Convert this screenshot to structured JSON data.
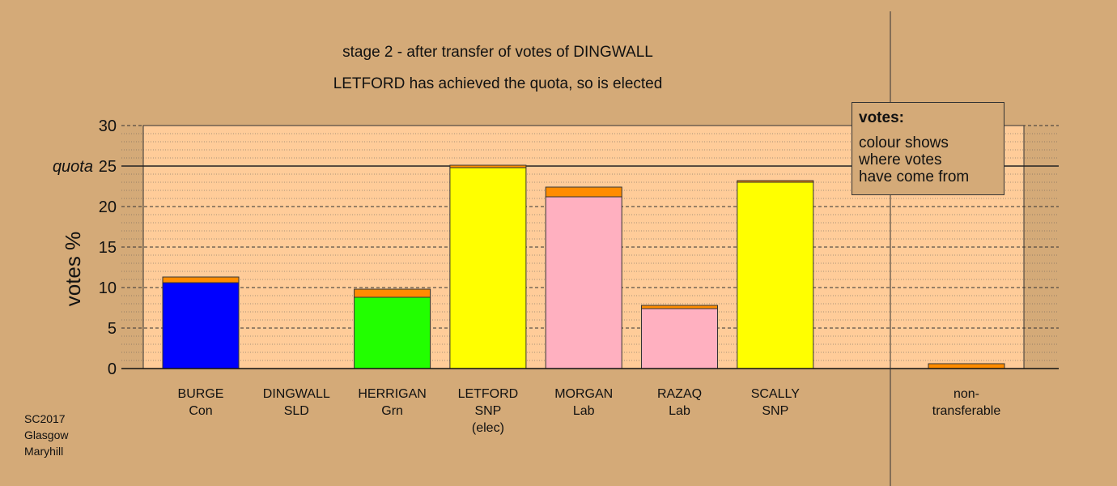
{
  "titles": {
    "line1": "stage 2 - after transfer of votes of DINGWALL",
    "line2": "LETFORD has achieved the quota, so is elected"
  },
  "legend": {
    "title": "votes:",
    "lines": [
      "colour shows",
      "where votes",
      "have come from"
    ]
  },
  "source": [
    "SC2017",
    "Glasgow",
    "Maryhill"
  ],
  "chart_data": {
    "type": "bar",
    "stacked": true,
    "title": "stage 2 - after transfer of votes of DINGWALL",
    "subtitle": "LETFORD has achieved the quota, so is elected",
    "ylabel": "votes %",
    "ylim": [
      0,
      30
    ],
    "yticks": [
      0,
      5,
      10,
      15,
      20,
      25,
      30
    ],
    "quota": {
      "label": "quota",
      "value": 25
    },
    "transfer_color": "#ff8c00",
    "categories": [
      {
        "name": "BURGE",
        "party": "Con",
        "note": "",
        "first": 10.6,
        "transfer": 0.7,
        "color": "#0000ff"
      },
      {
        "name": "DINGWALL",
        "party": "SLD",
        "note": "",
        "first": 0,
        "transfer": 0,
        "color": "#ff8c00"
      },
      {
        "name": "HERRIGAN",
        "party": "Grn",
        "note": "",
        "first": 8.8,
        "transfer": 1.0,
        "color": "#22ff00"
      },
      {
        "name": "LETFORD",
        "party": "SNP",
        "note": "(elec)",
        "first": 24.8,
        "transfer": 0.3,
        "color": "#ffff00"
      },
      {
        "name": "MORGAN",
        "party": "Lab",
        "note": "",
        "first": 21.2,
        "transfer": 1.2,
        "color": "#ffb0c0"
      },
      {
        "name": "RAZAQ",
        "party": "Lab",
        "note": "",
        "first": 7.4,
        "transfer": 0.4,
        "color": "#ffb0c0"
      },
      {
        "name": "SCALLY",
        "party": "SNP",
        "note": "",
        "first": 23.0,
        "transfer": 0.2,
        "color": "#ffff00"
      }
    ],
    "nontransferable": {
      "label": [
        "non-",
        "transferable"
      ],
      "value": 0.6
    },
    "colors": {
      "background": "#d4aa78",
      "plot": "#ffcc99"
    }
  }
}
